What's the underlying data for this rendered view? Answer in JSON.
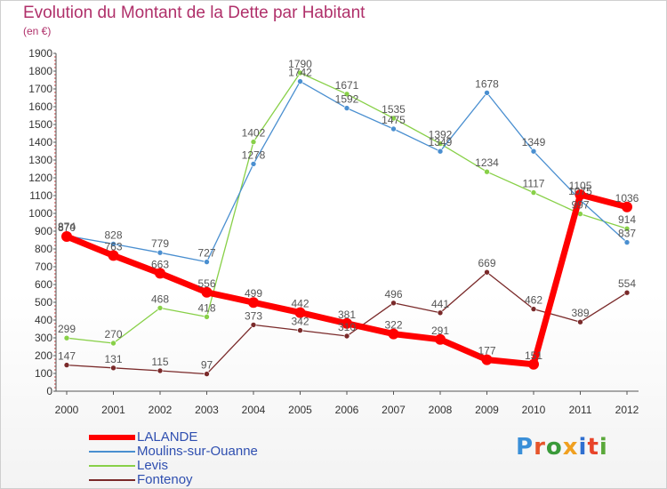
{
  "header": {
    "title": "Evolution du Montant de la Dette par Habitant",
    "unit": "(en €)"
  },
  "logo": {
    "text": "Proxiti",
    "letter_colors": [
      "#3a8fd8",
      "#e6552b",
      "#3a9a3a",
      "#f0a020",
      "#2f6fd0",
      "#e8442a",
      "#5aa83a"
    ]
  },
  "chart_data": {
    "type": "line",
    "title": "Evolution du Montant de la Dette par Habitant",
    "subtitle": "(en €)",
    "x": [
      "2000",
      "2001",
      "2002",
      "2003",
      "2004",
      "2005",
      "2006",
      "2007",
      "2008",
      "2009",
      "2010",
      "2011",
      "2012"
    ],
    "ylim": [
      0,
      1900
    ],
    "yticks": [
      "0",
      "100",
      "200",
      "300",
      "400",
      "500",
      "600",
      "700",
      "800",
      "900",
      "1000",
      "1100",
      "1200",
      "1300",
      "1400",
      "1500",
      "1600",
      "1700",
      "1800",
      "1900"
    ],
    "grid": false,
    "legend": "bottom-left",
    "series": [
      {
        "name": "LALANDE",
        "color": "#ff0000",
        "values": [
          870,
          763,
          663,
          556,
          499,
          442,
          381,
          322,
          291,
          177,
          151,
          1105,
          1036
        ]
      },
      {
        "name": "Moulins-sur-Ouanne",
        "color": "#4a8fd0",
        "values": [
          874,
          828,
          779,
          727,
          1278,
          1742,
          1592,
          1475,
          1349,
          1678,
          1349,
          1075,
          837
        ]
      },
      {
        "name": "Levis",
        "color": "#88d048",
        "values": [
          299,
          270,
          468,
          418,
          1402,
          1790,
          1671,
          1535,
          1392,
          1234,
          1117,
          997,
          914
        ]
      },
      {
        "name": "Fontenoy",
        "color": "#7a2a2a",
        "values": [
          147,
          131,
          115,
          97,
          373,
          342,
          310,
          496,
          441,
          669,
          462,
          389,
          554
        ]
      }
    ]
  }
}
